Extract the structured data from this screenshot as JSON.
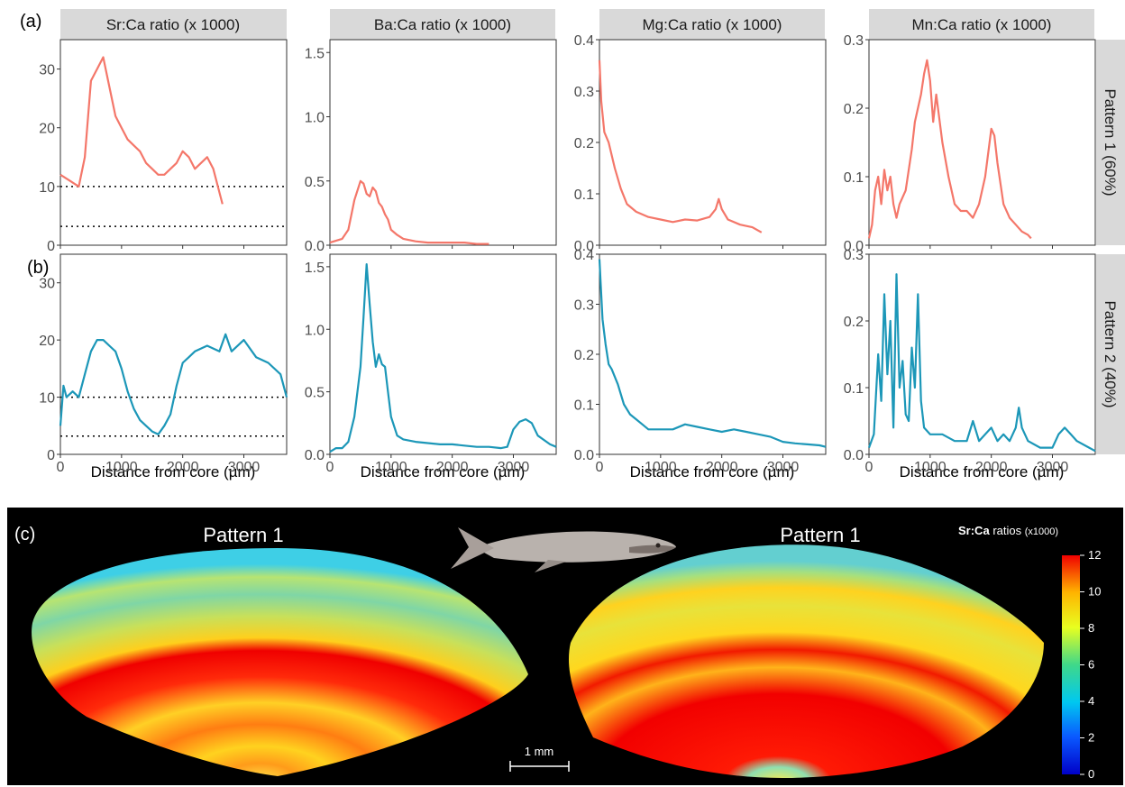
{
  "panel_labels": {
    "a": "(a)",
    "b": "(b)",
    "c": "(c)"
  },
  "facet_titles": [
    "Sr:Ca ratio (x 1000)",
    "Ba:Ca ratio (x 1000)",
    "Mg:Ca ratio (x 1000)",
    "Mn:Ca ratio (x 1000)"
  ],
  "row_strips": [
    "Pattern 1 (60%)",
    "Pattern 2 (40%)"
  ],
  "xlabel": "Distance from core (µm)",
  "colors": {
    "pattern1": "#f4776a",
    "pattern2": "#1c97b8",
    "strip": "#d9d9d9",
    "maps_bg": "#000000"
  },
  "chart_data": [
    {
      "type": "line",
      "row": "Pattern 1 (60%)",
      "facet": "Sr:Ca ratio (x 1000)",
      "xlim": [
        0,
        3700
      ],
      "ylim": [
        0,
        35
      ],
      "yticks": [
        0,
        10,
        20,
        30
      ],
      "xticks": [
        0,
        1000,
        2000,
        3000
      ],
      "reference_lines": [
        10,
        3.2
      ],
      "x": [
        0,
        150,
        300,
        400,
        500,
        600,
        700,
        800,
        900,
        1000,
        1100,
        1200,
        1300,
        1400,
        1500,
        1600,
        1700,
        1800,
        1900,
        2000,
        2100,
        2200,
        2300,
        2400,
        2500,
        2600,
        2650
      ],
      "y": [
        12,
        11,
        10,
        15,
        28,
        30,
        32,
        27,
        22,
        20,
        18,
        17,
        16,
        14,
        13,
        12,
        12,
        13,
        14,
        16,
        15,
        13,
        14,
        15,
        13,
        9,
        7
      ]
    },
    {
      "type": "line",
      "row": "Pattern 1 (60%)",
      "facet": "Ba:Ca ratio (x 1000)",
      "xlim": [
        0,
        3700
      ],
      "ylim": [
        0,
        1.6
      ],
      "yticks": [
        0.0,
        0.5,
        1.0,
        1.5
      ],
      "xticks": [
        0,
        1000,
        2000,
        3000
      ],
      "x": [
        0,
        200,
        300,
        400,
        500,
        550,
        600,
        650,
        700,
        750,
        800,
        850,
        900,
        950,
        1000,
        1100,
        1200,
        1400,
        1600,
        1800,
        2000,
        2200,
        2400,
        2600
      ],
      "y": [
        0.02,
        0.05,
        0.12,
        0.35,
        0.5,
        0.48,
        0.4,
        0.38,
        0.45,
        0.42,
        0.33,
        0.3,
        0.24,
        0.2,
        0.12,
        0.08,
        0.05,
        0.03,
        0.02,
        0.02,
        0.02,
        0.02,
        0.01,
        0.01
      ]
    },
    {
      "type": "line",
      "row": "Pattern 1 (60%)",
      "facet": "Mg:Ca ratio (x 1000)",
      "xlim": [
        0,
        3700
      ],
      "ylim": [
        0,
        0.4
      ],
      "yticks": [
        0.0,
        0.1,
        0.2,
        0.3,
        0.4
      ],
      "xticks": [
        0,
        1000,
        2000,
        3000
      ],
      "x": [
        0,
        30,
        80,
        150,
        250,
        350,
        450,
        600,
        800,
        1000,
        1200,
        1400,
        1600,
        1800,
        1900,
        1950,
        2000,
        2100,
        2300,
        2500,
        2650
      ],
      "y": [
        0.36,
        0.28,
        0.22,
        0.2,
        0.15,
        0.11,
        0.08,
        0.065,
        0.055,
        0.05,
        0.045,
        0.05,
        0.048,
        0.055,
        0.07,
        0.09,
        0.07,
        0.05,
        0.04,
        0.035,
        0.025
      ]
    },
    {
      "type": "line",
      "row": "Pattern 1 (60%)",
      "facet": "Mn:Ca ratio (x 1000)",
      "xlim": [
        0,
        3700
      ],
      "ylim": [
        0,
        0.3
      ],
      "yticks": [
        0.0,
        0.1,
        0.2,
        0.3
      ],
      "xticks": [
        0,
        1000,
        2000,
        3000
      ],
      "x": [
        0,
        50,
        100,
        150,
        200,
        250,
        300,
        350,
        400,
        450,
        500,
        600,
        700,
        750,
        800,
        850,
        900,
        950,
        1000,
        1050,
        1100,
        1200,
        1300,
        1400,
        1500,
        1600,
        1700,
        1800,
        1900,
        2000,
        2050,
        2100,
        2200,
        2300,
        2400,
        2500,
        2600,
        2650
      ],
      "y": [
        0.01,
        0.03,
        0.08,
        0.1,
        0.06,
        0.11,
        0.08,
        0.1,
        0.06,
        0.04,
        0.06,
        0.08,
        0.14,
        0.18,
        0.2,
        0.22,
        0.25,
        0.27,
        0.24,
        0.18,
        0.22,
        0.15,
        0.1,
        0.06,
        0.05,
        0.05,
        0.04,
        0.06,
        0.1,
        0.17,
        0.16,
        0.12,
        0.06,
        0.04,
        0.03,
        0.02,
        0.015,
        0.01
      ]
    },
    {
      "type": "line",
      "row": "Pattern 2 (40%)",
      "facet": "Sr:Ca ratio (x 1000)",
      "xlim": [
        0,
        3700
      ],
      "ylim": [
        0,
        35
      ],
      "yticks": [
        0,
        10,
        20,
        30
      ],
      "xticks": [
        0,
        1000,
        2000,
        3000
      ],
      "reference_lines": [
        10,
        3.2
      ],
      "x": [
        0,
        50,
        100,
        200,
        300,
        400,
        500,
        600,
        700,
        800,
        900,
        1000,
        1100,
        1200,
        1300,
        1400,
        1500,
        1600,
        1700,
        1800,
        1900,
        2000,
        2100,
        2200,
        2400,
        2600,
        2700,
        2800,
        3000,
        3200,
        3400,
        3600,
        3700
      ],
      "y": [
        5,
        12,
        10,
        11,
        10,
        14,
        18,
        20,
        20,
        19,
        18,
        15,
        11,
        8,
        6,
        5,
        4,
        3.5,
        5,
        7,
        12,
        16,
        17,
        18,
        19,
        18,
        21,
        18,
        20,
        17,
        16,
        14,
        10
      ]
    },
    {
      "type": "line",
      "row": "Pattern 2 (40%)",
      "facet": "Ba:Ca ratio (x 1000)",
      "xlim": [
        0,
        3700
      ],
      "ylim": [
        0,
        1.6
      ],
      "yticks": [
        0.0,
        0.5,
        1.0,
        1.5
      ],
      "xticks": [
        0,
        1000,
        2000,
        3000
      ],
      "x": [
        0,
        100,
        200,
        300,
        400,
        500,
        550,
        600,
        650,
        700,
        750,
        800,
        850,
        900,
        950,
        1000,
        1100,
        1200,
        1400,
        1600,
        1800,
        2000,
        2200,
        2400,
        2600,
        2800,
        2900,
        3000,
        3100,
        3200,
        3300,
        3400,
        3600,
        3700
      ],
      "y": [
        0.02,
        0.05,
        0.05,
        0.1,
        0.3,
        0.7,
        1.1,
        1.52,
        1.2,
        0.9,
        0.7,
        0.8,
        0.72,
        0.7,
        0.5,
        0.3,
        0.15,
        0.12,
        0.1,
        0.09,
        0.08,
        0.08,
        0.07,
        0.06,
        0.06,
        0.05,
        0.06,
        0.2,
        0.26,
        0.28,
        0.25,
        0.15,
        0.08,
        0.06
      ]
    },
    {
      "type": "line",
      "row": "Pattern 2 (40%)",
      "facet": "Mg:Ca ratio (x 1000)",
      "xlim": [
        0,
        3700
      ],
      "ylim": [
        0,
        0.4
      ],
      "yticks": [
        0.0,
        0.1,
        0.2,
        0.3,
        0.4
      ],
      "xticks": [
        0,
        1000,
        2000,
        3000
      ],
      "x": [
        0,
        20,
        50,
        100,
        150,
        200,
        300,
        400,
        500,
        600,
        700,
        800,
        1000,
        1200,
        1400,
        1600,
        1800,
        2000,
        2200,
        2400,
        2600,
        2800,
        3000,
        3200,
        3400,
        3600,
        3700
      ],
      "y": [
        0.39,
        0.34,
        0.27,
        0.22,
        0.18,
        0.17,
        0.14,
        0.1,
        0.08,
        0.07,
        0.06,
        0.05,
        0.05,
        0.05,
        0.06,
        0.055,
        0.05,
        0.045,
        0.05,
        0.045,
        0.04,
        0.035,
        0.025,
        0.022,
        0.02,
        0.018,
        0.015
      ]
    },
    {
      "type": "line",
      "row": "Pattern 2 (40%)",
      "facet": "Mn:Ca ratio (x 1000)",
      "xlim": [
        0,
        3700
      ],
      "ylim": [
        0,
        0.3
      ],
      "yticks": [
        0.0,
        0.1,
        0.2,
        0.3
      ],
      "xticks": [
        0,
        1000,
        2000,
        3000
      ],
      "x": [
        0,
        80,
        150,
        200,
        250,
        300,
        350,
        400,
        450,
        500,
        550,
        600,
        650,
        700,
        750,
        800,
        850,
        900,
        1000,
        1200,
        1400,
        1600,
        1700,
        1800,
        1900,
        2000,
        2100,
        2200,
        2300,
        2400,
        2450,
        2500,
        2600,
        2800,
        3000,
        3100,
        3200,
        3300,
        3400,
        3600,
        3700
      ],
      "y": [
        0.01,
        0.03,
        0.15,
        0.08,
        0.24,
        0.12,
        0.2,
        0.04,
        0.27,
        0.1,
        0.14,
        0.06,
        0.05,
        0.16,
        0.1,
        0.24,
        0.08,
        0.04,
        0.03,
        0.03,
        0.02,
        0.02,
        0.05,
        0.02,
        0.03,
        0.04,
        0.02,
        0.03,
        0.02,
        0.04,
        0.07,
        0.04,
        0.02,
        0.01,
        0.01,
        0.03,
        0.04,
        0.03,
        0.02,
        0.01,
        0.005
      ]
    }
  ],
  "maps": {
    "left_title": "Pattern 1",
    "right_title": "Pattern 1",
    "scalebar_label": "1 mm",
    "colorbar_title_bold": "Sr:Ca",
    "colorbar_title_rest": "ratios",
    "colorbar_unit": "(x1000)",
    "colorbar_ticks": [
      "12",
      "10",
      "8",
      "6",
      "4",
      "2",
      "0"
    ]
  }
}
